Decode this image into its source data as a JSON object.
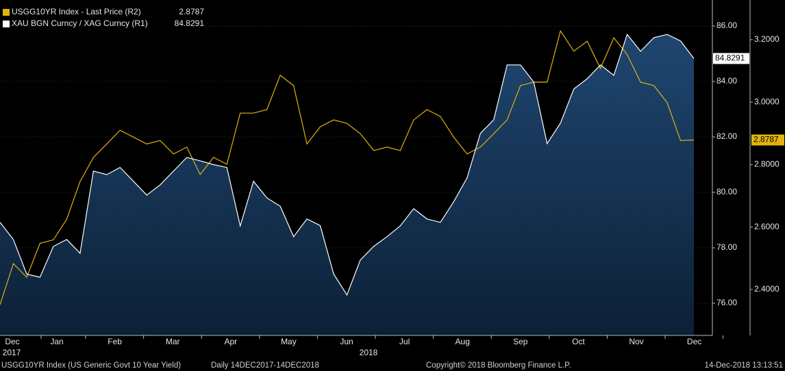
{
  "chart_data": {
    "type": "line",
    "x_labels": [
      "Dec",
      "Jan",
      "Feb",
      "Mar",
      "Apr",
      "May",
      "Jun",
      "Jul",
      "Aug",
      "Sep",
      "Oct",
      "Nov",
      "Dec"
    ],
    "year_labels": [
      "2017",
      "2018"
    ],
    "series": [
      {
        "name": "USGG10YR Index - Last Price (R2)",
        "color": "#e2b30c",
        "axis": "y2",
        "area": false,
        "values": [
          2.351,
          2.483,
          2.439,
          2.548,
          2.559,
          2.625,
          2.746,
          2.823,
          2.866,
          2.91,
          2.888,
          2.866,
          2.877,
          2.834,
          2.856,
          2.768,
          2.823,
          2.801,
          2.965,
          2.965,
          2.976,
          3.086,
          3.053,
          2.866,
          2.921,
          2.943,
          2.932,
          2.899,
          2.845,
          2.856,
          2.845,
          2.943,
          2.976,
          2.954,
          2.888,
          2.834,
          2.856,
          2.899,
          2.943,
          3.053,
          3.064,
          3.064,
          3.228,
          3.163,
          3.195,
          3.108,
          3.206,
          3.152,
          3.064,
          3.053,
          2.998,
          2.877,
          2.8787
        ],
        "last_value_label": "2.8787"
      },
      {
        "name": "XAU BGN Curncy / XAG Curncy (R1)",
        "color": "#ffffff",
        "axis": "y",
        "area": true,
        "area_color": "#14304f",
        "values": [
          78.92,
          78.3,
          77.05,
          76.94,
          78.05,
          78.3,
          77.8,
          80.77,
          80.64,
          80.9,
          80.4,
          79.9,
          80.27,
          80.77,
          81.26,
          81.14,
          81.0,
          80.9,
          78.79,
          80.4,
          79.8,
          79.5,
          78.4,
          79.04,
          78.8,
          77.06,
          76.3,
          77.56,
          78.05,
          78.4,
          78.79,
          79.41,
          79.04,
          78.92,
          79.66,
          80.52,
          82.13,
          82.62,
          84.6,
          84.6,
          83.98,
          81.76,
          82.5,
          83.73,
          84.1,
          84.6,
          84.22,
          85.7,
          85.09,
          85.58,
          85.7,
          85.46,
          84.8291
        ],
        "last_value_label": "84.8291"
      }
    ],
    "ylim": [
      74.84,
      86.94
    ],
    "yticks": [
      {
        "value": 76,
        "label": "76.00"
      },
      {
        "value": 78,
        "label": "78.00"
      },
      {
        "value": 80,
        "label": "80.00"
      },
      {
        "value": 82,
        "label": "82.00"
      },
      {
        "value": 84,
        "label": "84.00"
      },
      {
        "value": 86,
        "label": "86.00"
      }
    ],
    "y2lim": [
      2.253,
      3.327
    ],
    "y2ticks": [
      {
        "value": 2.4,
        "label": "2.4000"
      },
      {
        "value": 2.6,
        "label": "2.6000"
      },
      {
        "value": 2.8,
        "label": "2.8000"
      },
      {
        "value": 3.0,
        "label": "3.0000"
      },
      {
        "value": 3.2,
        "label": "3.2000"
      }
    ],
    "grid": true,
    "footer_left": "USGG10YR Index (US Generic Govt 10 Year Yield)",
    "footer_range": "Daily 14DEC2017-14DEC2018",
    "footer_copyright": "Copyright© 2018 Bloomberg Finance L.P.",
    "footer_timestamp": "14-Dec-2018 13:13:51"
  }
}
